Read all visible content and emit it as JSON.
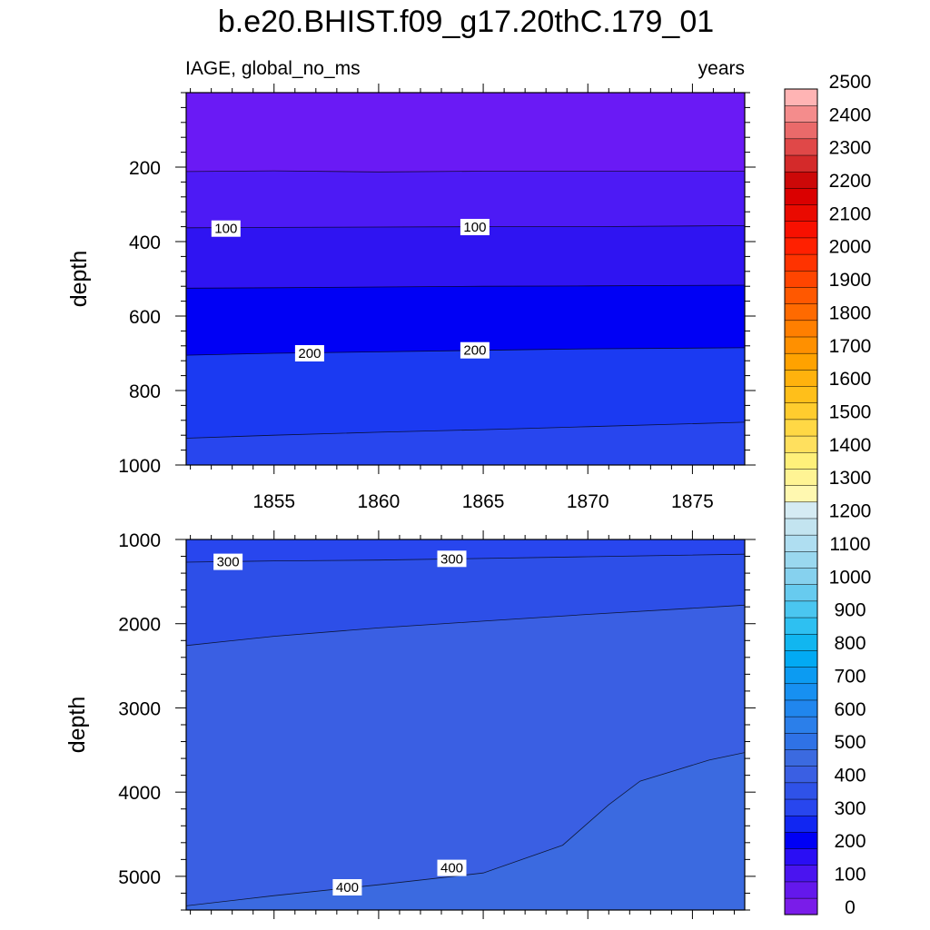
{
  "figure": {
    "title": "b.e20.BHIST.f09_g17.20thC.179_01",
    "left_string": "IAGE, global_no_ms",
    "right_string": "years"
  },
  "chart_data": [
    {
      "type": "contour",
      "name": "upper",
      "xlabel": "",
      "ylabel": "depth",
      "xlim": [
        1850.8,
        1877.5
      ],
      "ylim": [
        1000,
        0
      ],
      "xticks": [
        1855,
        1860,
        1865,
        1870,
        1875
      ],
      "yticks": [
        200,
        400,
        600,
        800,
        1000
      ],
      "x_tick_labels_shown": true,
      "contours": [
        {
          "level": 50,
          "fill_above": "#6a1af5",
          "points": [
            [
              1850.8,
              212
            ],
            [
              1855,
              210
            ],
            [
              1860,
              213
            ],
            [
              1865,
              211
            ],
            [
              1870,
              211
            ],
            [
              1877.5,
              211
            ]
          ]
        },
        {
          "level": 100,
          "fill_above": "#4d1af5",
          "points": [
            [
              1850.8,
              363
            ],
            [
              1855,
              362
            ],
            [
              1860,
              361
            ],
            [
              1865,
              360
            ],
            [
              1870,
              360
            ],
            [
              1877.5,
              357
            ]
          ]
        },
        {
          "level": 150,
          "fill_above": "#2f14f2",
          "points": [
            [
              1850.8,
              525
            ],
            [
              1855,
              524
            ],
            [
              1860,
              522
            ],
            [
              1865,
              520
            ],
            [
              1870,
              519
            ],
            [
              1877.5,
              517
            ]
          ]
        },
        {
          "level": 200,
          "fill_above": "#0000f5",
          "points": [
            [
              1850.8,
              705
            ],
            [
              1855,
              700
            ],
            [
              1860,
              696
            ],
            [
              1865,
              692
            ],
            [
              1870,
              688
            ],
            [
              1877.5,
              685
            ]
          ]
        },
        {
          "level": 250,
          "fill_above": "#1b3af2",
          "points": [
            [
              1850.8,
              928
            ],
            [
              1855,
              920
            ],
            [
              1860,
              912
            ],
            [
              1865,
              905
            ],
            [
              1870,
              897
            ],
            [
              1877.5,
              885
            ]
          ]
        }
      ],
      "bottom_fill": "#2846ee",
      "contour_labels": [
        {
          "text": "100",
          "x": 1852.7,
          "y": 365
        },
        {
          "text": "100",
          "x": 1864.6,
          "y": 361
        },
        {
          "text": "200",
          "x": 1856.7,
          "y": 700
        },
        {
          "text": "200",
          "x": 1864.6,
          "y": 692
        }
      ]
    },
    {
      "type": "contour",
      "name": "lower",
      "xlabel": "",
      "ylabel": "depth",
      "xlim": [
        1850.8,
        1877.5
      ],
      "ylim": [
        5400,
        1000
      ],
      "xticks": [
        1855,
        1860,
        1865,
        1870,
        1875
      ],
      "yticks": [
        1000,
        2000,
        3000,
        4000,
        5000
      ],
      "x_tick_labels_shown": false,
      "contours": [
        {
          "level": 300,
          "fill_above": "#2846ee",
          "points": [
            [
              1850.8,
              1270
            ],
            [
              1855,
              1255
            ],
            [
              1860,
              1245
            ],
            [
              1865,
              1225
            ],
            [
              1870,
              1205
            ],
            [
              1877.5,
              1175
            ]
          ]
        },
        {
          "level": 350,
          "fill_above": "#2d4fe8",
          "points": [
            [
              1850.8,
              2260
            ],
            [
              1855,
              2150
            ],
            [
              1860,
              2050
            ],
            [
              1865,
              1970
            ],
            [
              1870,
              1890
            ],
            [
              1877.5,
              1780
            ]
          ]
        },
        {
          "level": 400,
          "fill_above": "#3a5fe3",
          "points": [
            [
              1850.8,
              5350
            ],
            [
              1855,
              5230
            ],
            [
              1860,
              5100
            ],
            [
              1865,
              4960
            ],
            [
              1868.8,
              4630
            ],
            [
              1871.0,
              4150
            ],
            [
              1872.5,
              3870
            ],
            [
              1875.8,
              3620
            ],
            [
              1877.5,
              3530
            ]
          ]
        }
      ],
      "bottom_fill": "#3b6ae0",
      "contour_labels": [
        {
          "text": "300",
          "x": 1852.8,
          "y": 1265
        },
        {
          "text": "300",
          "x": 1863.5,
          "y": 1230
        },
        {
          "text": "400",
          "x": 1858.5,
          "y": 5130
        },
        {
          "text": "400",
          "x": 1863.5,
          "y": 4900
        }
      ]
    },
    {
      "type": "colorbar",
      "name": "colorbar",
      "labels": [
        "0",
        "100",
        "200",
        "300",
        "400",
        "500",
        "600",
        "700",
        "800",
        "900",
        "1000",
        "1100",
        "1200",
        "1300",
        "1400",
        "1500",
        "1600",
        "1700",
        "1800",
        "1900",
        "2000",
        "2100",
        "2200",
        "2300",
        "2400",
        "2500"
      ],
      "colors": [
        "#7a1ce9",
        "#6418ec",
        "#4a14f0",
        "#2a0ef4",
        "#0000f5",
        "#1126f2",
        "#2846ee",
        "#2f52e8",
        "#3a5fe3",
        "#3b6ae0",
        "#2f72e6",
        "#2b7fea",
        "#2086ee",
        "#1790f1",
        "#0c9bf2",
        "#02aaf3",
        "#11b6f0",
        "#2ec0f1",
        "#4ac6f0",
        "#67cbef",
        "#86d1ee",
        "#9ad8ef",
        "#afdef1",
        "#c3e4f0",
        "#d5ebf3",
        "#fff8b0",
        "#fff494",
        "#fff07a",
        "#ffe05e",
        "#ffd845",
        "#ffcc2e",
        "#ffbf1a",
        "#ffb20d",
        "#ffa200",
        "#ff9000",
        "#ff7f00",
        "#ff6a00",
        "#ff5800",
        "#ff4500",
        "#ff3300",
        "#ff2000",
        "#f81000",
        "#ea0a00",
        "#da0000",
        "#cc0808",
        "#d42a2a",
        "#e04848",
        "#ea6a6a",
        "#f48c8c",
        "#ffb4b4"
      ]
    }
  ]
}
